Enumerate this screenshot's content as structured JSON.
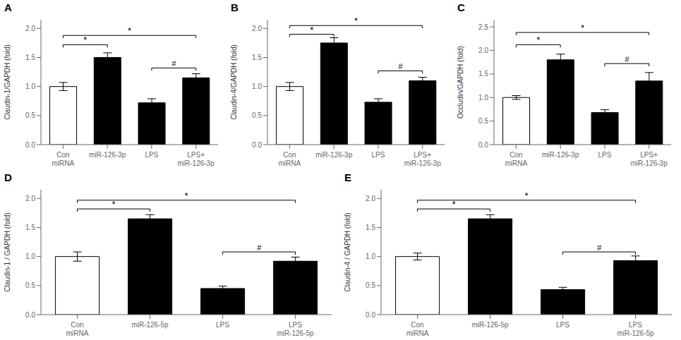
{
  "chart_data": [
    {
      "type": "bar",
      "title": "A",
      "ylabel": "Claudin-1/GAPDH (fold)",
      "ylim": [
        0,
        2.15
      ],
      "yticks": [
        {
          "value": 0.0,
          "label": "0.0"
        },
        0.5,
        {
          "value": 1.0,
          "label": "1.0"
        },
        1.5,
        {
          "value": 2.0,
          "label": "2.0"
        }
      ],
      "categories": [
        "Con\nmiRNA",
        "miR-126-3p",
        "LPS",
        "LPS+\nmiR-126-3p"
      ],
      "values": [
        1.0,
        1.5,
        0.72,
        1.15
      ],
      "errors": [
        0.07,
        0.08,
        0.07,
        0.07
      ],
      "colors": [
        "white",
        "black",
        "black",
        "black"
      ],
      "grid": false,
      "annotations": [
        {
          "between": [
            "Con\nmiRNA",
            "miR-126-3p"
          ],
          "y": 1.72,
          "label": "*"
        },
        {
          "between": [
            "Con\nmiRNA",
            "LPS+\nmiR-126-3p"
          ],
          "y": 1.88,
          "label": "*"
        },
        {
          "between": [
            "LPS",
            "LPS+\nmiR-126-3p"
          ],
          "y": 1.32,
          "label": "#"
        }
      ]
    },
    {
      "type": "bar",
      "title": "B",
      "ylabel": "Claudin-4/GAPDH (fold)",
      "ylim": [
        0,
        2.15
      ],
      "yticks": [
        {
          "value": 0.0,
          "label": "0.0"
        },
        0.5,
        {
          "value": 1.0,
          "label": "1.0"
        },
        1.5,
        {
          "value": 2.0,
          "label": "2.0"
        }
      ],
      "categories": [
        "Con\nmiRNA",
        "miR-126-3p",
        "LPS",
        "LPS+\nmiR-126-3p"
      ],
      "values": [
        1.0,
        1.75,
        0.73,
        1.1
      ],
      "errors": [
        0.07,
        0.09,
        0.06,
        0.06
      ],
      "colors": [
        "white",
        "black",
        "black",
        "black"
      ],
      "grid": false,
      "annotations": [
        {
          "between": [
            "Con\nmiRNA",
            "miR-126-3p"
          ],
          "y": 1.9,
          "label": "*"
        },
        {
          "between": [
            "Con\nmiRNA",
            "LPS+\nmiR-126-3p"
          ],
          "y": 2.05,
          "label": "*"
        },
        {
          "between": [
            "LPS",
            "LPS+\nmiR-126-3p"
          ],
          "y": 1.27,
          "label": "#"
        }
      ]
    },
    {
      "type": "bar",
      "title": "C",
      "ylabel": "Occludin/GAPDH (fold)",
      "ylim": [
        0,
        2.65
      ],
      "yticks": [
        {
          "value": 0.0,
          "label": "0.0"
        },
        0.5,
        {
          "value": 1.0,
          "label": "1.0"
        },
        1.5,
        {
          "value": 2.0,
          "label": "2.0"
        },
        2.5
      ],
      "categories": [
        "Con\nmiRNA",
        "miR-126-3p",
        "LPS",
        "LPS+\nmiR-126-3p"
      ],
      "values": [
        1.0,
        1.8,
        0.68,
        1.35
      ],
      "errors": [
        0.04,
        0.12,
        0.06,
        0.18
      ],
      "colors": [
        "white",
        "black",
        "black",
        "black"
      ],
      "grid": false,
      "annotations": [
        {
          "between": [
            "Con\nmiRNA",
            "miR-126-3p"
          ],
          "y": 2.12,
          "label": "*"
        },
        {
          "between": [
            "Con\nmiRNA",
            "LPS+\nmiR-126-3p"
          ],
          "y": 2.38,
          "label": "*"
        },
        {
          "between": [
            "LPS",
            "LPS+\nmiR-126-3p"
          ],
          "y": 1.72,
          "label": "#"
        }
      ]
    },
    {
      "type": "bar",
      "title": "D",
      "ylabel": "Claudin-1 / GAPDH (fold)",
      "ylim": [
        0,
        2.15
      ],
      "yticks": [
        {
          "value": 0.0,
          "label": "0.0"
        },
        0.5,
        {
          "value": 1.0,
          "label": "1.0"
        },
        1.5,
        {
          "value": 2.0,
          "label": "2.0"
        }
      ],
      "categories": [
        "Con\nmiRNA",
        "miR-126-5p",
        "LPS",
        "LPS\nmiR-126-5p"
      ],
      "values": [
        1.0,
        1.65,
        0.45,
        0.92
      ],
      "errors": [
        0.08,
        0.07,
        0.04,
        0.07
      ],
      "colors": [
        "white",
        "black",
        "black",
        "black"
      ],
      "grid": false,
      "annotations": [
        {
          "between": [
            "Con\nmiRNA",
            "miR-126-5p"
          ],
          "y": 1.82,
          "label": "*"
        },
        {
          "between": [
            "Con\nmiRNA",
            "LPS\nmiR-126-5p"
          ],
          "y": 1.97,
          "label": "*"
        },
        {
          "between": [
            "LPS",
            "LPS\nmiR-126-5p"
          ],
          "y": 1.08,
          "label": "#"
        }
      ]
    },
    {
      "type": "bar",
      "title": "E",
      "ylabel": "Claudin-4 / GAPDH (fold)",
      "ylim": [
        0,
        2.15
      ],
      "yticks": [
        {
          "value": 0.0,
          "label": "0.0"
        },
        0.5,
        {
          "value": 1.0,
          "label": "1.0"
        },
        1.5,
        {
          "value": 2.0,
          "label": "2.0"
        }
      ],
      "categories": [
        "Con\nmiRNA",
        "miR-126-5p",
        "LPS",
        "LPS\nmiR-126-5p"
      ],
      "values": [
        1.0,
        1.65,
        0.43,
        0.93
      ],
      "errors": [
        0.06,
        0.07,
        0.04,
        0.08
      ],
      "colors": [
        "white",
        "black",
        "black",
        "black"
      ],
      "grid": false,
      "annotations": [
        {
          "between": [
            "Con\nmiRNA",
            "miR-126-5p"
          ],
          "y": 1.82,
          "label": "*"
        },
        {
          "between": [
            "Con\nmiRNA",
            "LPS\nmiR-126-5p"
          ],
          "y": 1.97,
          "label": "*"
        },
        {
          "between": [
            "LPS",
            "LPS\nmiR-126-5p"
          ],
          "y": 1.08,
          "label": "#"
        }
      ]
    }
  ]
}
